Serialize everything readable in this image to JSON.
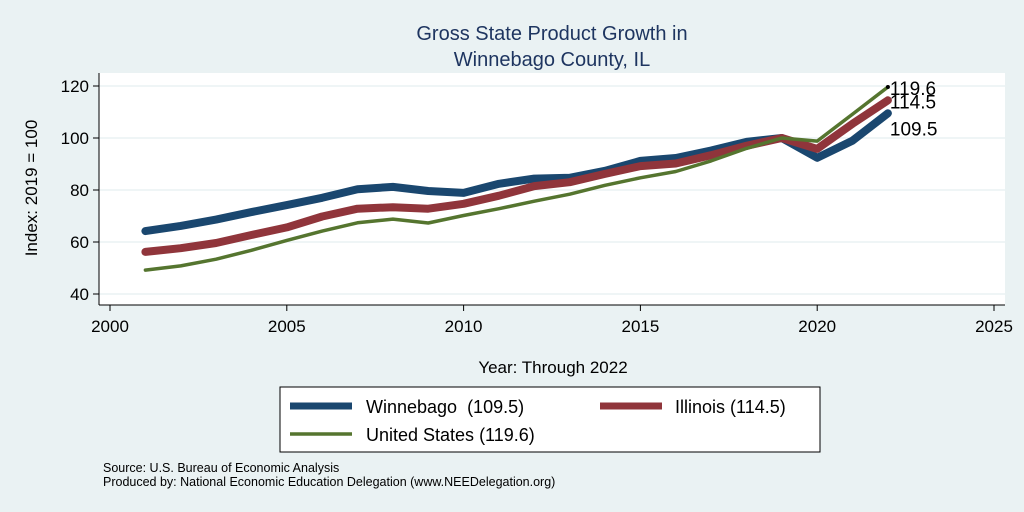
{
  "chart_data": {
    "type": "line",
    "title": "Gross State Product Growth in Winnebago County, IL",
    "title_lines": [
      "Gross State Product Growth in",
      "Winnebago County, IL"
    ],
    "xlabel": "Year: Through 2022",
    "ylabel": "Index: 2019 = 100",
    "xlim": [
      2000,
      2025
    ],
    "ylim": [
      40,
      120
    ],
    "xticks": [
      2000,
      2005,
      2010,
      2015,
      2020,
      2025
    ],
    "yticks": [
      40,
      60,
      80,
      100,
      120
    ],
    "grid": "horizontal",
    "legend_position": "bottom",
    "x": [
      2001,
      2002,
      2003,
      2004,
      2005,
      2006,
      2007,
      2008,
      2009,
      2010,
      2011,
      2012,
      2013,
      2014,
      2015,
      2016,
      2017,
      2018,
      2019,
      2020,
      2021,
      2022
    ],
    "series": [
      {
        "name": "Winnebago",
        "legend_label": "Winnebago  (109.5)",
        "color": "#1a476f",
        "weight": "thick",
        "end_label": "109.5",
        "values": [
          64.2,
          66.2,
          68.6,
          71.5,
          74.2,
          77.0,
          80.3,
          81.2,
          79.6,
          78.9,
          82.4,
          84.4,
          84.7,
          87.4,
          91.2,
          92.3,
          95.2,
          98.5,
          100.0,
          92.4,
          99.0,
          109.5
        ]
      },
      {
        "name": "Illinois",
        "legend_label": "Illinois (114.5)",
        "color": "#90353b",
        "weight": "thick",
        "end_label": "114.5",
        "values": [
          56.2,
          57.6,
          59.6,
          62.7,
          65.6,
          69.8,
          72.8,
          73.4,
          72.8,
          74.7,
          77.8,
          81.5,
          83.0,
          86.2,
          89.2,
          90.2,
          93.4,
          97.0,
          100.0,
          95.8,
          105.5,
          114.5
        ]
      },
      {
        "name": "United States",
        "legend_label": "United States (119.6)",
        "color": "#55752f",
        "weight": "thin",
        "end_label": "119.6",
        "values": [
          49.2,
          50.8,
          53.4,
          56.8,
          60.6,
          64.2,
          67.4,
          68.8,
          67.3,
          70.2,
          72.8,
          75.7,
          78.4,
          81.8,
          84.7,
          87.1,
          91.2,
          96.0,
          100.0,
          98.8,
          109.2,
          119.6
        ]
      }
    ],
    "notes": [
      "Source: U.S. Bureau of Economic Analysis",
      "Produced by: National Economic Education Delegation (www.NEEDelegation.org)"
    ]
  }
}
